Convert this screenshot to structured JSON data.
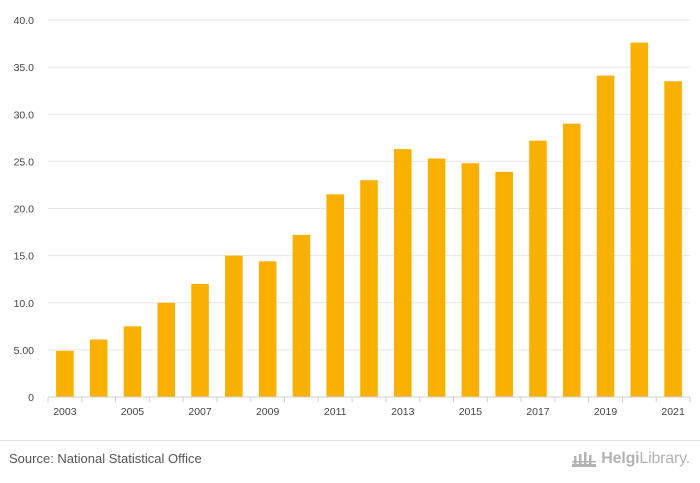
{
  "chart_data": {
    "type": "bar",
    "categories": [
      "2003",
      "2004",
      "2005",
      "2006",
      "2007",
      "2008",
      "2009",
      "2010",
      "2011",
      "2012",
      "2013",
      "2014",
      "2015",
      "2016",
      "2017",
      "2018",
      "2019",
      "2020",
      "2021"
    ],
    "values": [
      4.9,
      6.1,
      7.5,
      10.0,
      12.0,
      15.0,
      14.4,
      17.2,
      21.5,
      23.0,
      26.3,
      25.3,
      24.8,
      23.9,
      27.2,
      29.0,
      34.1,
      37.6,
      33.5
    ],
    "x_tick_labels": [
      "2003",
      "2005",
      "2007",
      "2009",
      "2011",
      "2013",
      "2015",
      "2017",
      "2019",
      "2021"
    ],
    "y_ticks": [
      0,
      5,
      10,
      15,
      20,
      25,
      30,
      35,
      40
    ],
    "y_tick_labels": [
      "0",
      "5.00",
      "10.0",
      "15.0",
      "20.0",
      "25.0",
      "30.0",
      "35.0",
      "40.0"
    ],
    "ylim": [
      0,
      40
    ],
    "title": "",
    "xlabel": "",
    "ylabel": "",
    "grid": true,
    "bar_color": "#F9B000"
  },
  "footer": {
    "source": "Source: National Statistical Office",
    "brand_part1": "Helgi",
    "brand_part2": "Library."
  }
}
